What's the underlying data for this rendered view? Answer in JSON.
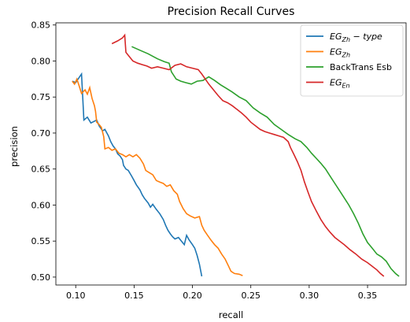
{
  "chart_data": {
    "type": "line",
    "title": "Precision Recall Curves",
    "xlabel": "recall",
    "ylabel": "precision",
    "xlim": [
      0.083,
      0.383
    ],
    "ylim": [
      0.489,
      0.853
    ],
    "xticks": [
      0.1,
      0.15,
      0.2,
      0.25,
      0.3,
      0.35
    ],
    "xtick_labels": [
      "0.10",
      "0.15",
      "0.20",
      "0.25",
      "0.30",
      "0.35"
    ],
    "yticks": [
      0.5,
      0.55,
      0.6,
      0.65,
      0.7,
      0.75,
      0.8,
      0.85
    ],
    "ytick_labels": [
      "0.50",
      "0.55",
      "0.60",
      "0.65",
      "0.70",
      "0.75",
      "0.80",
      "0.85"
    ],
    "grid": false,
    "legend_position": "top-right",
    "series": [
      {
        "name": "EG_{Zh}-type",
        "legend_main": "EG",
        "legend_sub": "Zh",
        "legend_suffix": " − type",
        "color": "#1f77b4",
        "points": [
          [
            0.097,
            0.772
          ],
          [
            0.1,
            0.77
          ],
          [
            0.102,
            0.775
          ],
          [
            0.105,
            0.782
          ],
          [
            0.107,
            0.718
          ],
          [
            0.11,
            0.722
          ],
          [
            0.113,
            0.714
          ],
          [
            0.118,
            0.718
          ],
          [
            0.12,
            0.71
          ],
          [
            0.123,
            0.703
          ],
          [
            0.125,
            0.705
          ],
          [
            0.128,
            0.696
          ],
          [
            0.13,
            0.688
          ],
          [
            0.132,
            0.682
          ],
          [
            0.134,
            0.678
          ],
          [
            0.136,
            0.671
          ],
          [
            0.138,
            0.668
          ],
          [
            0.14,
            0.663
          ],
          [
            0.141,
            0.655
          ],
          [
            0.143,
            0.65
          ],
          [
            0.145,
            0.648
          ],
          [
            0.148,
            0.64
          ],
          [
            0.15,
            0.634
          ],
          [
            0.152,
            0.628
          ],
          [
            0.155,
            0.621
          ],
          [
            0.157,
            0.614
          ],
          [
            0.159,
            0.609
          ],
          [
            0.162,
            0.603
          ],
          [
            0.164,
            0.597
          ],
          [
            0.166,
            0.601
          ],
          [
            0.169,
            0.594
          ],
          [
            0.172,
            0.588
          ],
          [
            0.175,
            0.58
          ],
          [
            0.177,
            0.572
          ],
          [
            0.179,
            0.565
          ],
          [
            0.181,
            0.56
          ],
          [
            0.183,
            0.556
          ],
          [
            0.185,
            0.553
          ],
          [
            0.188,
            0.555
          ],
          [
            0.19,
            0.551
          ],
          [
            0.193,
            0.545
          ],
          [
            0.195,
            0.558
          ],
          [
            0.197,
            0.552
          ],
          [
            0.2,
            0.545
          ],
          [
            0.202,
            0.54
          ],
          [
            0.204,
            0.53
          ],
          [
            0.206,
            0.518
          ],
          [
            0.208,
            0.501
          ]
        ]
      },
      {
        "name": "EG_{Zh}",
        "legend_main": "EG",
        "legend_sub": "Zh",
        "legend_suffix": "",
        "color": "#ff7f0e",
        "points": [
          [
            0.097,
            0.772
          ],
          [
            0.099,
            0.768
          ],
          [
            0.101,
            0.775
          ],
          [
            0.103,
            0.765
          ],
          [
            0.105,
            0.755
          ],
          [
            0.108,
            0.76
          ],
          [
            0.11,
            0.754
          ],
          [
            0.112,
            0.763
          ],
          [
            0.114,
            0.748
          ],
          [
            0.116,
            0.738
          ],
          [
            0.117,
            0.73
          ],
          [
            0.118,
            0.715
          ],
          [
            0.12,
            0.712
          ],
          [
            0.122,
            0.708
          ],
          [
            0.124,
            0.695
          ],
          [
            0.125,
            0.678
          ],
          [
            0.128,
            0.68
          ],
          [
            0.131,
            0.676
          ],
          [
            0.134,
            0.678
          ],
          [
            0.137,
            0.672
          ],
          [
            0.14,
            0.67
          ],
          [
            0.143,
            0.667
          ],
          [
            0.146,
            0.67
          ],
          [
            0.149,
            0.667
          ],
          [
            0.152,
            0.67
          ],
          [
            0.155,
            0.665
          ],
          [
            0.158,
            0.657
          ],
          [
            0.16,
            0.648
          ],
          [
            0.163,
            0.645
          ],
          [
            0.166,
            0.642
          ],
          [
            0.169,
            0.634
          ],
          [
            0.172,
            0.632
          ],
          [
            0.175,
            0.63
          ],
          [
            0.178,
            0.626
          ],
          [
            0.181,
            0.628
          ],
          [
            0.184,
            0.62
          ],
          [
            0.187,
            0.615
          ],
          [
            0.189,
            0.605
          ],
          [
            0.192,
            0.595
          ],
          [
            0.195,
            0.588
          ],
          [
            0.198,
            0.585
          ],
          [
            0.202,
            0.582
          ],
          [
            0.206,
            0.584
          ],
          [
            0.208,
            0.572
          ],
          [
            0.21,
            0.565
          ],
          [
            0.213,
            0.558
          ],
          [
            0.216,
            0.551
          ],
          [
            0.219,
            0.545
          ],
          [
            0.222,
            0.54
          ],
          [
            0.225,
            0.532
          ],
          [
            0.228,
            0.525
          ],
          [
            0.231,
            0.515
          ],
          [
            0.233,
            0.508
          ],
          [
            0.236,
            0.505
          ],
          [
            0.24,
            0.504
          ],
          [
            0.243,
            0.502
          ]
        ]
      },
      {
        "name": "BackTrans Esb",
        "legend_main": "BackTrans Esb",
        "legend_sub": "",
        "legend_suffix": "",
        "color": "#2ca02c",
        "points": [
          [
            0.148,
            0.82
          ],
          [
            0.155,
            0.815
          ],
          [
            0.162,
            0.81
          ],
          [
            0.17,
            0.803
          ],
          [
            0.176,
            0.799
          ],
          [
            0.18,
            0.797
          ],
          [
            0.182,
            0.785
          ],
          [
            0.186,
            0.775
          ],
          [
            0.19,
            0.772
          ],
          [
            0.194,
            0.77
          ],
          [
            0.199,
            0.768
          ],
          [
            0.204,
            0.772
          ],
          [
            0.209,
            0.773
          ],
          [
            0.214,
            0.778
          ],
          [
            0.219,
            0.773
          ],
          [
            0.224,
            0.767
          ],
          [
            0.229,
            0.762
          ],
          [
            0.234,
            0.757
          ],
          [
            0.24,
            0.75
          ],
          [
            0.246,
            0.745
          ],
          [
            0.252,
            0.735
          ],
          [
            0.258,
            0.728
          ],
          [
            0.264,
            0.722
          ],
          [
            0.27,
            0.712
          ],
          [
            0.276,
            0.705
          ],
          [
            0.282,
            0.698
          ],
          [
            0.288,
            0.692
          ],
          [
            0.293,
            0.688
          ],
          [
            0.298,
            0.68
          ],
          [
            0.302,
            0.672
          ],
          [
            0.306,
            0.665
          ],
          [
            0.31,
            0.658
          ],
          [
            0.314,
            0.65
          ],
          [
            0.318,
            0.64
          ],
          [
            0.322,
            0.63
          ],
          [
            0.326,
            0.62
          ],
          [
            0.33,
            0.61
          ],
          [
            0.334,
            0.6
          ],
          [
            0.338,
            0.588
          ],
          [
            0.342,
            0.575
          ],
          [
            0.346,
            0.56
          ],
          [
            0.35,
            0.548
          ],
          [
            0.354,
            0.54
          ],
          [
            0.358,
            0.532
          ],
          [
            0.362,
            0.528
          ],
          [
            0.366,
            0.522
          ],
          [
            0.37,
            0.512
          ],
          [
            0.374,
            0.505
          ],
          [
            0.377,
            0.501
          ]
        ]
      },
      {
        "name": "EG_{En}",
        "legend_main": "EG",
        "legend_sub": "En",
        "legend_suffix": "",
        "color": "#d62728",
        "points": [
          [
            0.131,
            0.824
          ],
          [
            0.136,
            0.828
          ],
          [
            0.14,
            0.832
          ],
          [
            0.142,
            0.836
          ],
          [
            0.143,
            0.812
          ],
          [
            0.146,
            0.806
          ],
          [
            0.149,
            0.8
          ],
          [
            0.153,
            0.797
          ],
          [
            0.157,
            0.795
          ],
          [
            0.161,
            0.793
          ],
          [
            0.165,
            0.79
          ],
          [
            0.17,
            0.792
          ],
          [
            0.175,
            0.79
          ],
          [
            0.18,
            0.788
          ],
          [
            0.185,
            0.794
          ],
          [
            0.19,
            0.796
          ],
          [
            0.195,
            0.792
          ],
          [
            0.2,
            0.79
          ],
          [
            0.205,
            0.788
          ],
          [
            0.208,
            0.782
          ],
          [
            0.211,
            0.775
          ],
          [
            0.214,
            0.768
          ],
          [
            0.218,
            0.76
          ],
          [
            0.222,
            0.752
          ],
          [
            0.226,
            0.745
          ],
          [
            0.23,
            0.742
          ],
          [
            0.234,
            0.738
          ],
          [
            0.238,
            0.733
          ],
          [
            0.242,
            0.728
          ],
          [
            0.246,
            0.722
          ],
          [
            0.25,
            0.715
          ],
          [
            0.254,
            0.71
          ],
          [
            0.258,
            0.705
          ],
          [
            0.262,
            0.702
          ],
          [
            0.266,
            0.7
          ],
          [
            0.27,
            0.698
          ],
          [
            0.274,
            0.696
          ],
          [
            0.278,
            0.694
          ],
          [
            0.282,
            0.688
          ],
          [
            0.284,
            0.68
          ],
          [
            0.287,
            0.67
          ],
          [
            0.29,
            0.66
          ],
          [
            0.293,
            0.648
          ],
          [
            0.296,
            0.632
          ],
          [
            0.299,
            0.618
          ],
          [
            0.302,
            0.605
          ],
          [
            0.306,
            0.592
          ],
          [
            0.31,
            0.58
          ],
          [
            0.314,
            0.57
          ],
          [
            0.318,
            0.562
          ],
          [
            0.322,
            0.555
          ],
          [
            0.326,
            0.55
          ],
          [
            0.33,
            0.545
          ],
          [
            0.335,
            0.538
          ],
          [
            0.34,
            0.532
          ],
          [
            0.345,
            0.525
          ],
          [
            0.35,
            0.52
          ],
          [
            0.354,
            0.515
          ],
          [
            0.358,
            0.51
          ],
          [
            0.361,
            0.505
          ],
          [
            0.364,
            0.501
          ]
        ]
      }
    ]
  }
}
